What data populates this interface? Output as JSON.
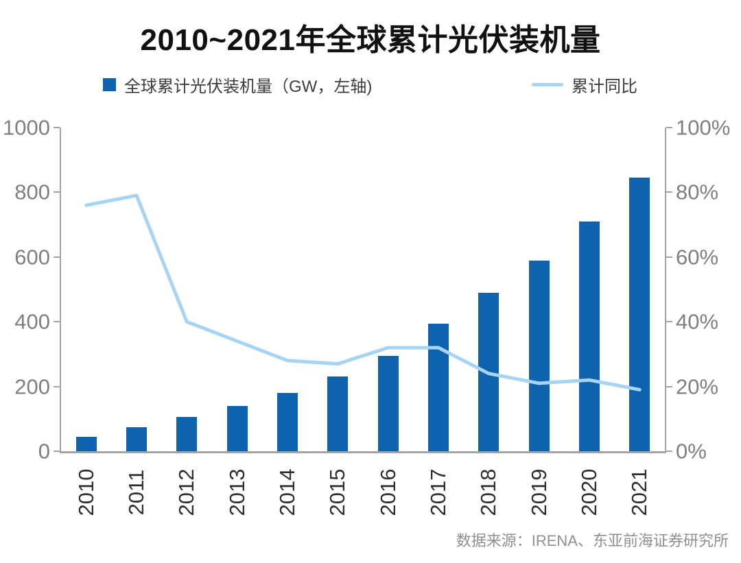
{
  "title": "2010~2021年全球累计光伏装机量",
  "source": "数据来源：IRENA、东亚前海证券研究所",
  "legend": [
    {
      "label": "全球累计光伏装机量（GW，左轴)",
      "marker": "bar-swatch",
      "color": "#0E62AE"
    },
    {
      "label": "累计同比",
      "marker": "line-swatch",
      "color": "#A6D4F3"
    }
  ],
  "colors": {
    "bar": "#0E62AE",
    "line": "#A6D4F3",
    "axis": "#A3A3A3",
    "tick_label": "#7F7F7F",
    "x_label": "#2E2E2E",
    "title": "#111111",
    "source": "#8F8F8F"
  },
  "chart_data": {
    "type": "bar",
    "subtype": "bar+line combo, dual axis",
    "title": "2010~2021年全球累计光伏装机量",
    "categories": [
      "2010",
      "2011",
      "2012",
      "2013",
      "2014",
      "2015",
      "2016",
      "2017",
      "2018",
      "2019",
      "2020",
      "2021"
    ],
    "series": [
      {
        "name": "全球累计光伏装机量（GW，左轴)",
        "type": "bar",
        "axis": "left",
        "unit": "GW",
        "values": [
          45,
          75,
          105,
          140,
          180,
          230,
          295,
          395,
          490,
          590,
          710,
          845
        ]
      },
      {
        "name": "累计同比",
        "type": "line",
        "axis": "right",
        "unit": "%",
        "values": [
          76,
          79,
          40,
          34,
          28,
          27,
          32,
          32,
          24,
          21,
          22,
          19
        ]
      }
    ],
    "left_axis": {
      "min": 0,
      "max": 1000,
      "ticks": [
        "0",
        "200",
        "400",
        "600",
        "800",
        "1000"
      ]
    },
    "right_axis": {
      "min": 0,
      "max": 100,
      "ticks": [
        "0%",
        "20%",
        "40%",
        "60%",
        "80%",
        "100%"
      ]
    },
    "grid": false,
    "legend_position": "top"
  }
}
